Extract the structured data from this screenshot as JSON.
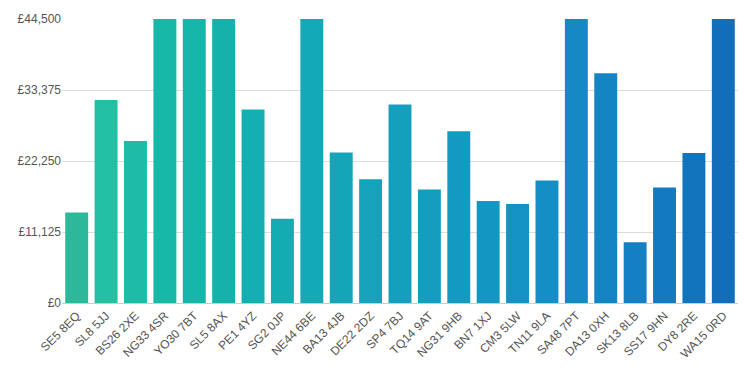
{
  "chart_data": {
    "type": "bar",
    "categories": [
      "SE5 8EQ",
      "SL8 5JJ",
      "BS26 2XE",
      "NG33 4SR",
      "YO30 7BT",
      "SL5 8AX",
      "PE1 4YZ",
      "SG2 0JP",
      "NE44 6BE",
      "BA13 4JB",
      "DE22 2DZ",
      "SP4 7BJ",
      "TQ14 9AT",
      "NG31 9HB",
      "BN7 1XJ",
      "CM3 5LW",
      "TN11 9LA",
      "SA48 7PT",
      "DA13 0XH",
      "SK13 8LB",
      "SS17 9HN",
      "DY8 2RE",
      "WA15 0RD"
    ],
    "values": [
      14200,
      31800,
      25400,
      44500,
      44500,
      44500,
      30300,
      13200,
      44500,
      23600,
      19400,
      31100,
      17800,
      26900,
      16000,
      15500,
      19200,
      44500,
      36000,
      9500,
      18100,
      23500,
      44500
    ],
    "colors": [
      "#2cb89a",
      "#22bfa2",
      "#1cbca6",
      "#18b8a8",
      "#16b5aa",
      "#15b2ac",
      "#14afb0",
      "#14acb3",
      "#14a9b6",
      "#14a6b8",
      "#14a3ba",
      "#14a0bc",
      "#149dbe",
      "#1499c0",
      "#1496c2",
      "#1492c3",
      "#148ec4",
      "#1489c4",
      "#1484c3",
      "#147fc2",
      "#137ac0",
      "#1274bd",
      "#116eba"
    ],
    "ylim": [
      0,
      44500
    ],
    "yticks": [
      {
        "value": 0,
        "label": "£0"
      },
      {
        "value": 11125,
        "label": "£11,125"
      },
      {
        "value": 22250,
        "label": "£22,250"
      },
      {
        "value": 33375,
        "label": "£33,375"
      },
      {
        "value": 44500,
        "label": "£44,500"
      }
    ],
    "grid": true
  }
}
